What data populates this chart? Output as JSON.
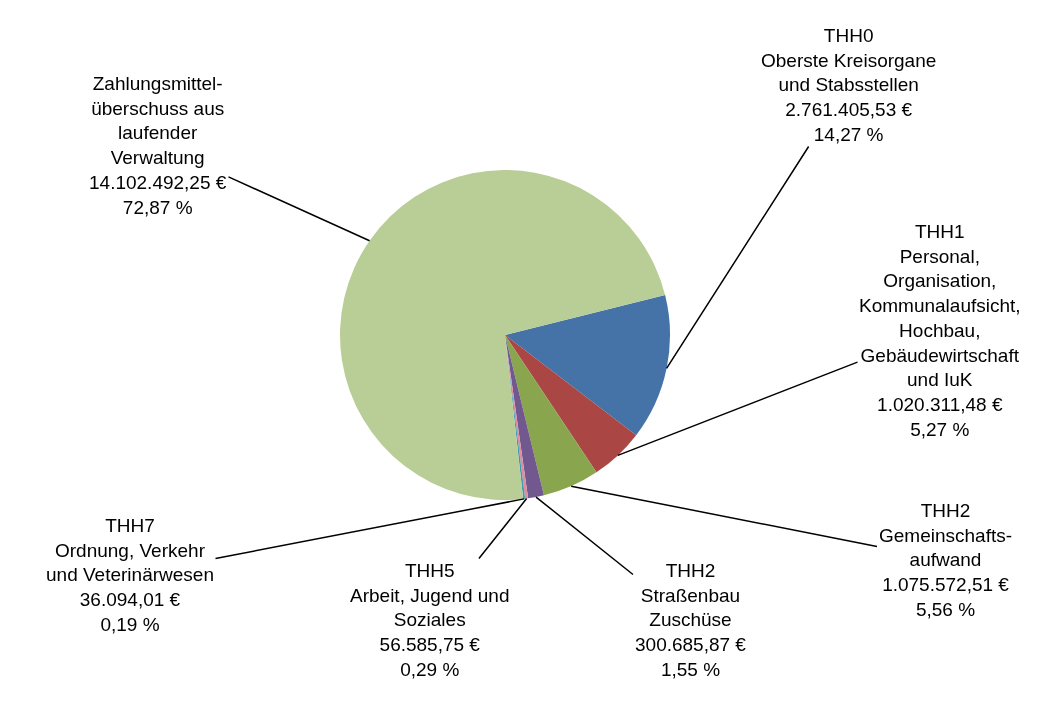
{
  "chart_data": {
    "type": "pie",
    "categories": [
      "THH0\nOberste Kreisorgane\nund Stabsstellen",
      "THH1\nPersonal,\nOrganisation,\nKommunalaufsicht,\nHochbau,\nGebäudewirtschaft\nund IuK",
      "THH2\nGemeinschafts-\naufwand",
      "THH2\nStraßenbau\nZuschüse",
      "THH5\nArbeit, Jugend und\nSoziales",
      "THH7\nOrdnung, Verkehr\nund Veterinärwesen",
      "Zahlungsmittel-\nüberschuss aus\nlaufender\nVerwaltung"
    ],
    "values": [
      2761405.53,
      1020311.48,
      1075572.51,
      300685.87,
      56585.75,
      36094.01,
      14102492.25
    ],
    "value_labels": [
      "2.761.405,53 €\n14,27 %",
      "1.020.311,48 €\n5,27 %",
      "1.075.572,51 €\n5,56 %",
      "300.685,87 €\n1,55 %",
      "56.585,75 €\n0,29 %",
      "36.094,01 €\n0,19 %",
      "14.102.492,25 €\n72,87 %"
    ],
    "colors": [
      "#4572a7",
      "#aa4643",
      "#89a54e",
      "#71588f",
      "#db8ea0",
      "#4198af",
      "#b9cd96"
    ]
  }
}
